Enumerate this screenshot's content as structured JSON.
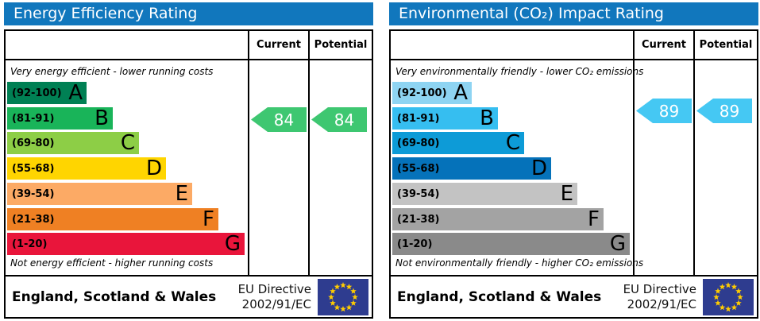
{
  "colors": {
    "header_bar": "#1177bd",
    "border": "#000000",
    "flag_blue": "#2e3c8f",
    "flag_star": "#ffcc00"
  },
  "panels": [
    {
      "title": "Energy Efficiency Rating",
      "columns": {
        "current": "Current",
        "potential": "Potential"
      },
      "top_note": "Very energy efficient - lower running costs",
      "bottom_note": "Not energy efficient - higher running costs",
      "bands": [
        {
          "range": "(92-100)",
          "letter": "A",
          "color": "#008054"
        },
        {
          "range": "(81-91)",
          "letter": "B",
          "color": "#19b459"
        },
        {
          "range": "(69-80)",
          "letter": "C",
          "color": "#8dce46"
        },
        {
          "range": "(55-68)",
          "letter": "D",
          "color": "#ffd500"
        },
        {
          "range": "(39-54)",
          "letter": "E",
          "color": "#fcaa65"
        },
        {
          "range": "(21-38)",
          "letter": "F",
          "color": "#ef8023"
        },
        {
          "range": "(1-20)",
          "letter": "G",
          "color": "#e9153b"
        }
      ],
      "current": {
        "value": "84",
        "color": "#3ec771"
      },
      "potential": {
        "value": "84",
        "color": "#3ec771"
      },
      "footer": {
        "region": "England, Scotland & Wales",
        "directive_line1": "EU Directive",
        "directive_line2": "2002/91/EC"
      }
    },
    {
      "title": "Environmental (CO₂) Impact Rating",
      "columns": {
        "current": "Current",
        "potential": "Potential"
      },
      "top_note": "Very environmentally friendly - lower CO₂ emissions",
      "bottom_note": "Not environmentally friendly - higher CO₂ emissions",
      "bands": [
        {
          "range": "(92-100)",
          "letter": "A",
          "color": "#8ed4f2"
        },
        {
          "range": "(81-91)",
          "letter": "B",
          "color": "#36bef0"
        },
        {
          "range": "(69-80)",
          "letter": "C",
          "color": "#0d9bd7"
        },
        {
          "range": "(55-68)",
          "letter": "D",
          "color": "#0572ba"
        },
        {
          "range": "(39-54)",
          "letter": "E",
          "color": "#c3c3c3"
        },
        {
          "range": "(21-38)",
          "letter": "F",
          "color": "#a3a3a3"
        },
        {
          "range": "(1-20)",
          "letter": "G",
          "color": "#8a8a8a"
        }
      ],
      "current": {
        "value": "89",
        "color": "#45c8f3"
      },
      "potential": {
        "value": "89",
        "color": "#45c8f3"
      },
      "footer": {
        "region": "England, Scotland & Wales",
        "directive_line1": "EU Directive",
        "directive_line2": "2002/91/EC"
      }
    }
  ],
  "chart_data": [
    {
      "type": "bar",
      "title": "Energy Efficiency Rating",
      "categories": [
        "A (92-100)",
        "B (81-91)",
        "C (69-80)",
        "D (55-68)",
        "E (39-54)",
        "F (21-38)",
        "G (1-20)"
      ],
      "current": 84,
      "potential": 84,
      "current_band": "B",
      "potential_band": "B",
      "annotations": [
        "Very energy efficient - lower running costs",
        "Not energy efficient - higher running costs"
      ],
      "region": "England, Scotland & Wales",
      "directive": "EU Directive 2002/91/EC"
    },
    {
      "type": "bar",
      "title": "Environmental (CO₂) Impact Rating",
      "categories": [
        "A (92-100)",
        "B (81-91)",
        "C (69-80)",
        "D (55-68)",
        "E (39-54)",
        "F (21-38)",
        "G (1-20)"
      ],
      "current": 89,
      "potential": 89,
      "current_band": "B",
      "potential_band": "B",
      "annotations": [
        "Very environmentally friendly - lower CO₂ emissions",
        "Not environmentally friendly - higher CO₂ emissions"
      ],
      "region": "England, Scotland & Wales",
      "directive": "EU Directive 2002/91/EC"
    }
  ]
}
